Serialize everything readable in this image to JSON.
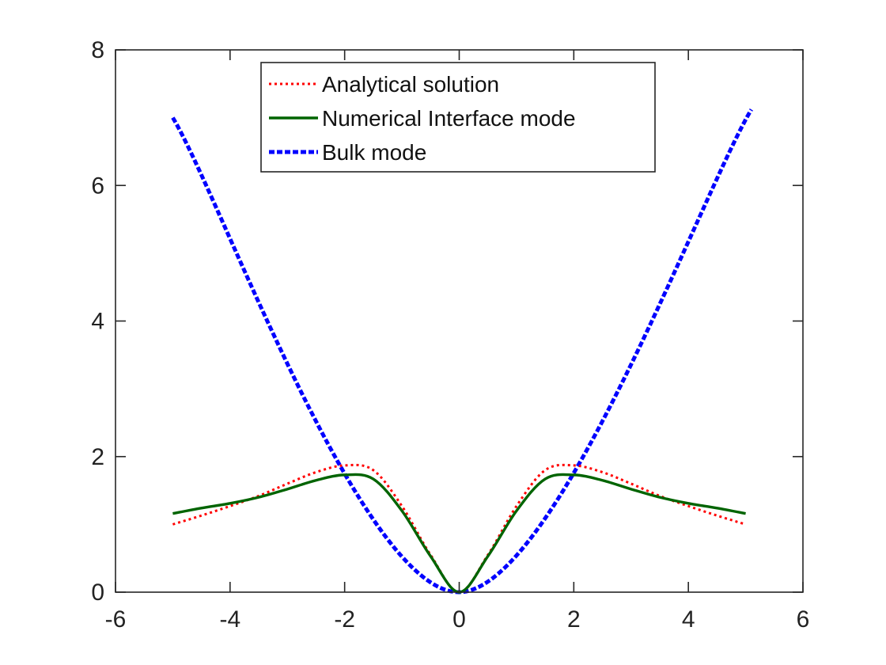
{
  "chart_data": {
    "type": "line",
    "title": "",
    "xlabel": "",
    "ylabel": "",
    "xlim": [
      -6,
      6
    ],
    "ylim": [
      0,
      8
    ],
    "x_ticks": [
      -6,
      -4,
      -2,
      0,
      2,
      4,
      6
    ],
    "y_ticks": [
      0,
      2,
      4,
      6,
      8
    ],
    "x_tick_labels": [
      "-6",
      "-4",
      "-2",
      "0",
      "2",
      "4",
      "6"
    ],
    "y_tick_labels": [
      "0",
      "2",
      "4",
      "6",
      "8"
    ],
    "grid": false,
    "legend_placement": "top-center",
    "series": [
      {
        "name": "Analytical solution",
        "color": "#ff0000",
        "style": "dotted",
        "x": [
          -5,
          -4.5,
          -4,
          -3.5,
          -3,
          -2.5,
          -2,
          -1.5,
          -1,
          -0.5,
          0,
          0.5,
          1,
          1.5,
          2,
          2.5,
          3,
          3.5,
          4,
          4.5,
          5
        ],
        "y": [
          1.0,
          1.13,
          1.27,
          1.42,
          1.6,
          1.77,
          1.87,
          1.8,
          1.27,
          0.55,
          0.0,
          0.55,
          1.27,
          1.8,
          1.87,
          1.77,
          1.6,
          1.42,
          1.27,
          1.13,
          1.0
        ]
      },
      {
        "name": "Numerical Interface mode",
        "color": "#006400",
        "style": "solid",
        "x": [
          -5,
          -4.5,
          -4,
          -3.5,
          -3,
          -2.5,
          -2,
          -1.5,
          -1,
          -0.5,
          0,
          0.5,
          1,
          1.5,
          2,
          2.5,
          3,
          3.5,
          4,
          4.5,
          5
        ],
        "y": [
          1.16,
          1.24,
          1.31,
          1.4,
          1.52,
          1.65,
          1.73,
          1.67,
          1.2,
          0.53,
          0.0,
          0.53,
          1.2,
          1.67,
          1.73,
          1.65,
          1.52,
          1.4,
          1.31,
          1.24,
          1.16
        ]
      },
      {
        "name": "Bulk mode",
        "color": "#0000ff",
        "style": "dashed",
        "x": [
          -5,
          0,
          5.1
        ],
        "y": [
          7.0,
          0.0,
          7.12
        ]
      }
    ]
  }
}
